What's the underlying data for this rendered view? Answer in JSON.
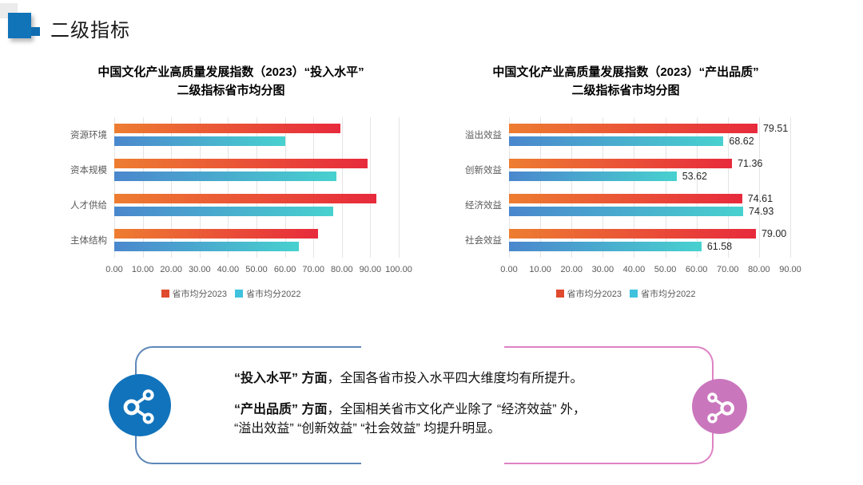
{
  "slide_title": "二级指标",
  "chart_data": [
    {
      "type": "bar",
      "orientation": "horizontal-grouped",
      "title": [
        "中国文化产业高质量发展指数（2023）“投入水平”",
        "二级指标省市均分图"
      ],
      "categories": [
        "资源环境",
        "资本规模",
        "人才供给",
        "主体结构"
      ],
      "series": [
        {
          "name": "省市均分2023",
          "values": [
            79.5,
            89.0,
            92.0,
            71.5
          ],
          "labels": null
        },
        {
          "name": "省市均分2022",
          "values": [
            60.0,
            78.0,
            77.0,
            65.0
          ],
          "labels": null
        }
      ],
      "xlim": [
        0,
        100
      ],
      "tick_labels": [
        "0.00",
        "10.00",
        "20.00",
        "30.00",
        "40.00",
        "50.00",
        "60.00",
        "70.00",
        "80.00",
        "90.00",
        "100.00"
      ],
      "grid": true,
      "legend_position": "bottom",
      "value_labels_visible": false,
      "xlabel": "",
      "ylabel": ""
    },
    {
      "type": "bar",
      "orientation": "horizontal-grouped",
      "title": [
        "中国文化产业高质量发展指数（2023）“产出品质”",
        "二级指标省市均分图"
      ],
      "categories": [
        "溢出效益",
        "创新效益",
        "经济效益",
        "社会效益"
      ],
      "series": [
        {
          "name": "省市均分2023",
          "values": [
            79.51,
            71.36,
            74.61,
            79.0
          ],
          "labels": [
            "79.51",
            "71.36",
            "74.61",
            "79.00"
          ]
        },
        {
          "name": "省市均分2022",
          "values": [
            68.62,
            53.62,
            74.93,
            61.58
          ],
          "labels": [
            "68.62",
            "53.62",
            "74.93",
            "61.58"
          ]
        }
      ],
      "xlim": [
        0,
        90
      ],
      "tick_labels": [
        "0.00",
        "10.00",
        "20.00",
        "30.00",
        "40.00",
        "50.00",
        "60.00",
        "70.00",
        "80.00",
        "90.00"
      ],
      "grid": true,
      "legend_position": "bottom",
      "value_labels_visible": true,
      "xlabel": "",
      "ylabel": ""
    }
  ],
  "callout": {
    "paragraph1": {
      "bold": "“投入水平” 方面",
      "rest": "，全国各省市投入水平四大维度均有所提升。"
    },
    "paragraph2": {
      "bold": "“产出品质” 方面",
      "rest": "，全国相关省市文化产业除了 “经济效益” 外，",
      "line2": "“溢出效益” “创新效益” “社会效益” 均提升明显。"
    }
  },
  "colors": {
    "bar_2023_gradient_start": "#ED7D31",
    "bar_2023_gradient_end": "#E72A3C",
    "bar_2022_gradient_start": "#4A87CD",
    "bar_2022_gradient_end": "#48D1CF",
    "legend_2023": "#E04A2F",
    "legend_2022": "#3FC2DD",
    "header_blue": "#1173B8",
    "callout_border_blue": "#5E88B8",
    "callout_border_pink": "#DE82C4",
    "badge_blue": "#1173BB",
    "badge_pink": "#CA76BD"
  },
  "icons": {
    "left_badge": "share-network-icon",
    "right_badge": "share-network-icon"
  }
}
